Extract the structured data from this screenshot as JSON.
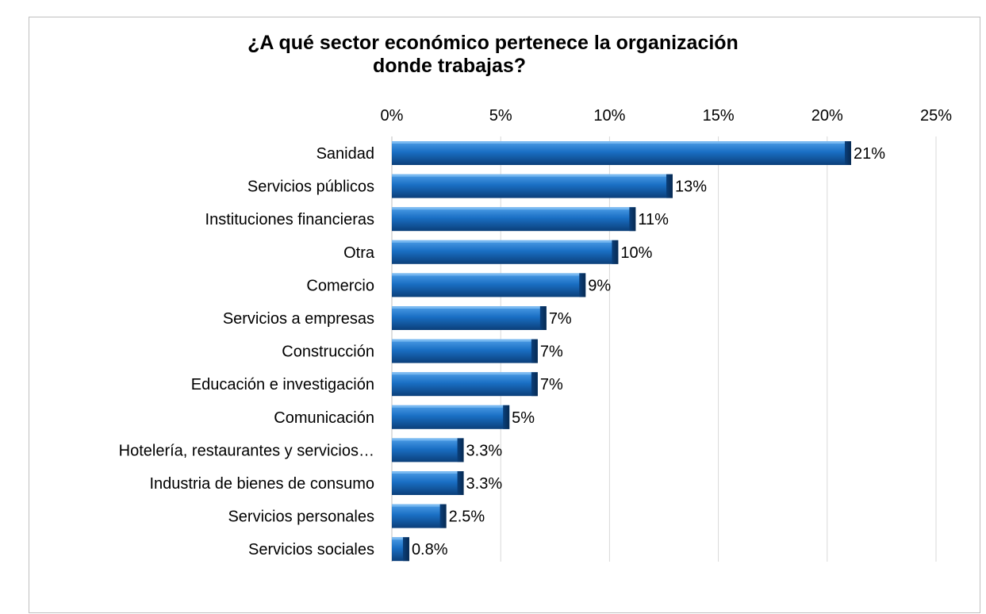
{
  "chart_data": {
    "type": "bar",
    "orientation": "horizontal",
    "title_line1": "¿A qué sector económico pertenece la organización",
    "title_line2": "donde trabajas?",
    "categories": [
      "Sanidad",
      "Servicios públicos",
      "Instituciones financieras",
      "Otra",
      "Comercio",
      "Servicios a empresas",
      "Construcción",
      "Educación e investigación",
      "Comunicación",
      "Hotelería, restaurantes y servicios…",
      "Industria de bienes de consumo",
      "Servicios personales",
      "Servicios sociales"
    ],
    "values": [
      21,
      13,
      11,
      10,
      9,
      7,
      7,
      7,
      5,
      3.3,
      3.3,
      2.5,
      0.8
    ],
    "data_labels": [
      "21%",
      "13%",
      "11%",
      "10%",
      "9%",
      "7%",
      "7%",
      "7%",
      "5%",
      "3.3%",
      "3.3%",
      "2.5%",
      "0.8%"
    ],
    "bar_lengths": [
      21.1,
      12.9,
      11.2,
      10.4,
      8.9,
      7.1,
      6.7,
      6.7,
      5.4,
      3.3,
      3.3,
      2.5,
      0.8
    ],
    "xlim": [
      0,
      25
    ],
    "xticks": [
      0,
      5,
      10,
      15,
      20,
      25
    ],
    "xtick_labels": [
      "0%",
      "5%",
      "10%",
      "15%",
      "20%",
      "25%"
    ],
    "axis_position": "top",
    "grid": true,
    "legend": "none",
    "colors": {
      "bar_light": "#4f9fe8",
      "bar_mid": "#1a6fc4",
      "bar_dark": "#0b3f7a",
      "grid": "#d9d9d9",
      "axis": "#bfbfbf"
    }
  }
}
